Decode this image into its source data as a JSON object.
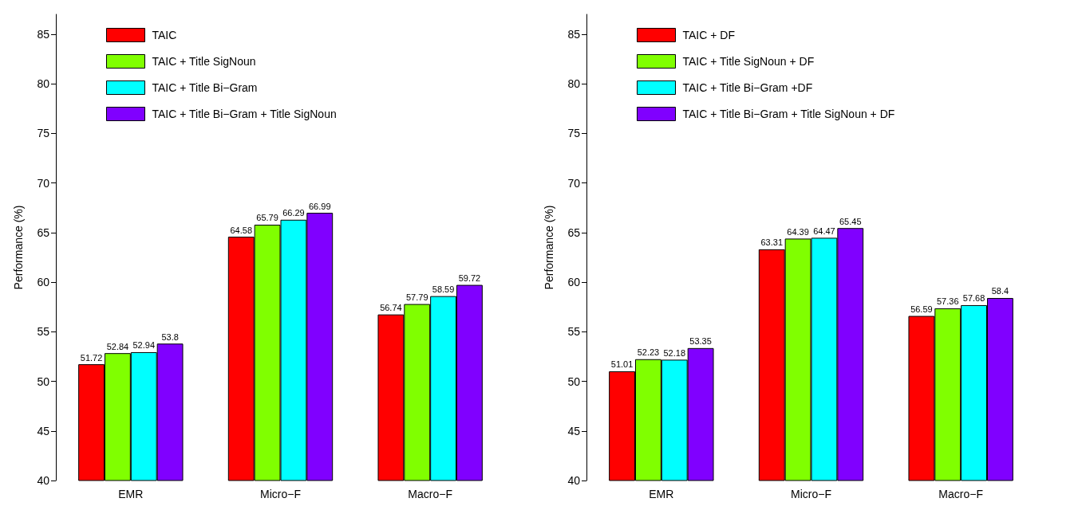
{
  "chart_data": [
    {
      "type": "bar",
      "ylabel": "Performance (%)",
      "categories": [
        "EMR",
        "Micro−F",
        "Macro−F"
      ],
      "ylim": [
        40,
        87
      ],
      "yticks": [
        40,
        45,
        50,
        55,
        60,
        65,
        70,
        75,
        80,
        85
      ],
      "grid": false,
      "legend": "top",
      "data_labels": true,
      "series": [
        {
          "name": "TAIC",
          "color": "#ff0000",
          "values": [
            51.72,
            64.58,
            56.74
          ]
        },
        {
          "name": "TAIC + Title SigNoun",
          "color": "#80ff00",
          "values": [
            52.84,
            65.79,
            57.79
          ]
        },
        {
          "name": "TAIC + Title Bi−Gram",
          "color": "#00ffff",
          "values": [
            52.94,
            66.29,
            58.59
          ]
        },
        {
          "name": "TAIC + Title Bi−Gram + Title SigNoun",
          "color": "#8000ff",
          "values": [
            53.8,
            66.99,
            59.72
          ]
        }
      ]
    },
    {
      "type": "bar",
      "ylabel": "Performance (%)",
      "categories": [
        "EMR",
        "Micro−F",
        "Macro−F"
      ],
      "ylim": [
        40,
        87
      ],
      "yticks": [
        40,
        45,
        50,
        55,
        60,
        65,
        70,
        75,
        80,
        85
      ],
      "grid": false,
      "legend": "top",
      "data_labels": true,
      "series": [
        {
          "name": "TAIC + DF",
          "color": "#ff0000",
          "values": [
            51.01,
            63.31,
            56.59
          ]
        },
        {
          "name": "TAIC + Title SigNoun + DF",
          "color": "#80ff00",
          "values": [
            52.23,
            64.39,
            57.36
          ]
        },
        {
          "name": "TAIC + Title Bi−Gram +DF",
          "color": "#00ffff",
          "values": [
            52.18,
            64.47,
            57.68
          ]
        },
        {
          "name": "TAIC + Title Bi−Gram + Title SigNoun + DF",
          "color": "#8000ff",
          "values": [
            53.35,
            65.45,
            58.4
          ]
        }
      ]
    }
  ]
}
